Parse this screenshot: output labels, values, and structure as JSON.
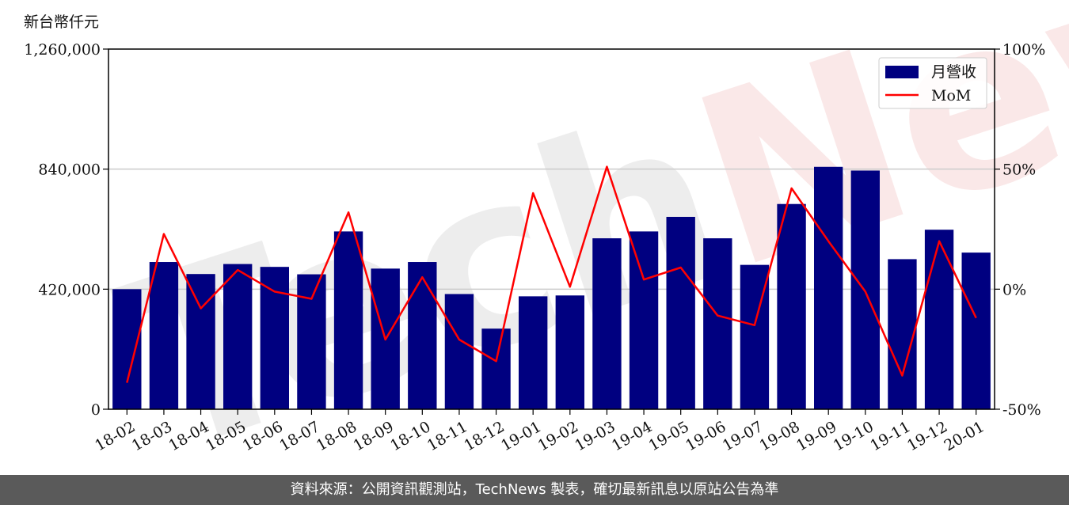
{
  "chart_data": {
    "type": "bar+line",
    "unit_label": "新台幣仟元",
    "categories": [
      "18-02",
      "18-03",
      "18-04",
      "18-05",
      "18-06",
      "18-07",
      "18-08",
      "18-09",
      "18-10",
      "18-11",
      "18-12",
      "19-01",
      "19-02",
      "19-03",
      "19-04",
      "19-05",
      "19-06",
      "19-07",
      "19-08",
      "19-09",
      "19-10",
      "19-11",
      "19-12",
      "20-01"
    ],
    "series": [
      {
        "name": "月營收",
        "type": "bar",
        "axis": "left",
        "color": "#000080",
        "values": [
          420000,
          515000,
          473000,
          508000,
          498000,
          472000,
          622000,
          492000,
          515000,
          403000,
          282000,
          395000,
          398000,
          598000,
          622000,
          673000,
          598000,
          505000,
          718000,
          848000,
          835000,
          525000,
          628000,
          548000
        ]
      },
      {
        "name": "MoM",
        "type": "line",
        "axis": "right",
        "color": "#ff0000",
        "values": [
          -39,
          23,
          -8,
          8,
          -1,
          -4,
          32,
          -21,
          5,
          -21,
          -30,
          40,
          1,
          51,
          4,
          9,
          -11,
          -15,
          42,
          20,
          -1,
          -36,
          20,
          -12
        ]
      }
    ],
    "y_left": {
      "min": 0,
      "max": 1260000,
      "ticks": [
        "0",
        "420,000",
        "840,000",
        "1,260,000"
      ],
      "tick_values": [
        0,
        420000,
        840000,
        1260000
      ]
    },
    "y_right": {
      "min": -50,
      "max": 100,
      "ticks": [
        "-50%",
        "0%",
        "50%",
        "100%"
      ],
      "tick_values": [
        -50,
        0,
        50,
        100
      ]
    },
    "grid": "horizontal",
    "legend_position": "top-right"
  },
  "watermark": "TechNews",
  "footer_text": "資料來源：公開資訊觀測站，TechNews 製表，確切最新訊息以原站公告為準"
}
